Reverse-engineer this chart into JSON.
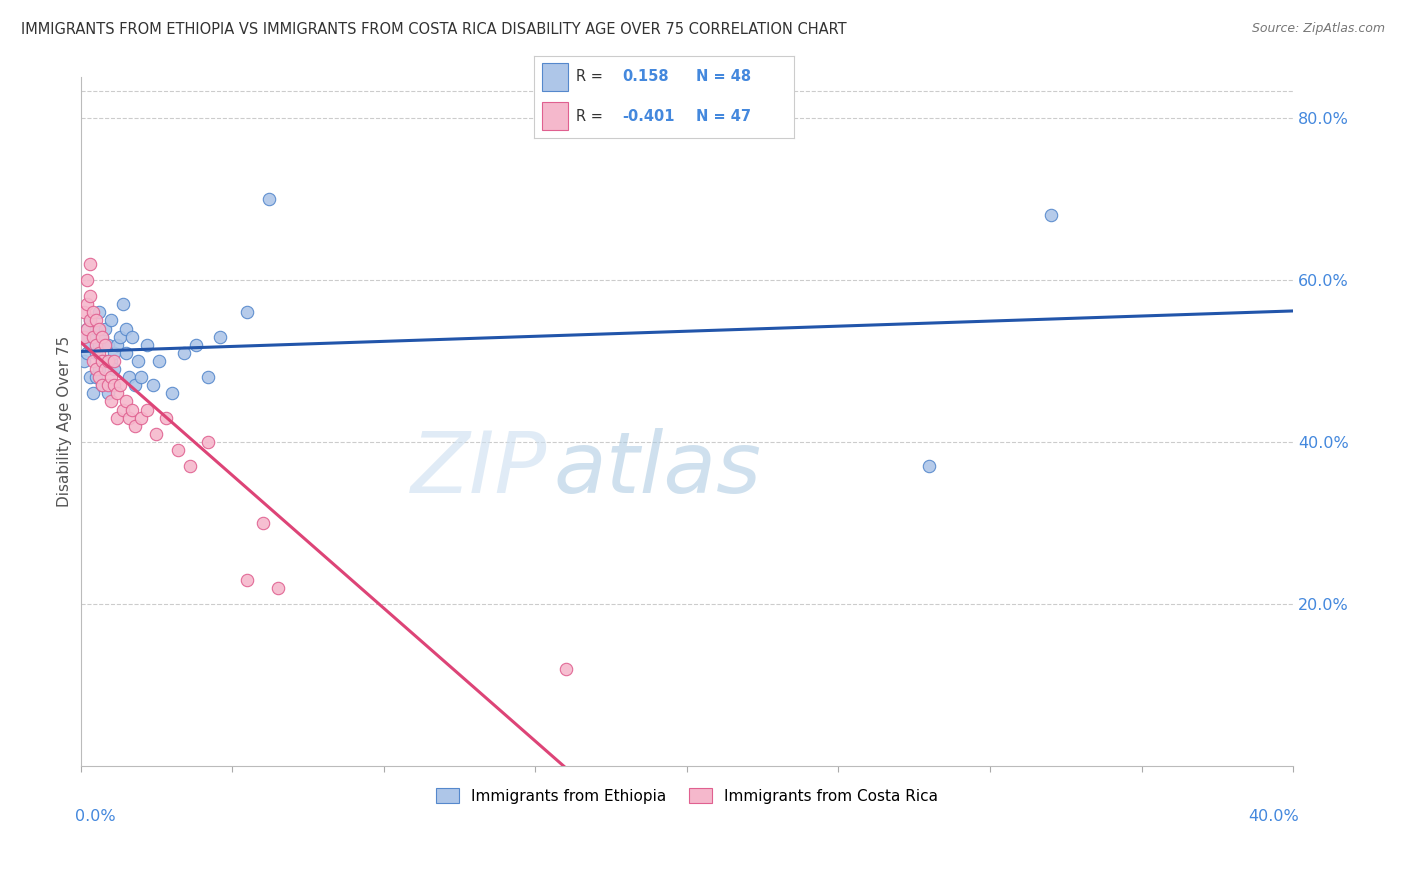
{
  "title": "IMMIGRANTS FROM ETHIOPIA VS IMMIGRANTS FROM COSTA RICA DISABILITY AGE OVER 75 CORRELATION CHART",
  "source": "Source: ZipAtlas.com",
  "ylabel": "Disability Age Over 75",
  "right_yticklabels": [
    "20.0%",
    "40.0%",
    "60.0%",
    "80.0%"
  ],
  "right_yticks": [
    0.2,
    0.4,
    0.6,
    0.8
  ],
  "ethiopia_fill": "#aec6e8",
  "ethiopia_edge": "#5588cc",
  "costarica_fill": "#f5b8cc",
  "costarica_edge": "#e06090",
  "eth_line_color": "#2255aa",
  "cr_line_color": "#dd4477",
  "R_ethiopia": 0.158,
  "N_ethiopia": 48,
  "R_costarica": -0.401,
  "N_costarica": 47,
  "xlim": [
    0.0,
    0.4
  ],
  "ylim": [
    0.0,
    0.85
  ],
  "ethiopia_scatter_x": [
    0.001,
    0.001,
    0.002,
    0.002,
    0.003,
    0.003,
    0.003,
    0.004,
    0.004,
    0.005,
    0.005,
    0.005,
    0.006,
    0.006,
    0.006,
    0.007,
    0.007,
    0.007,
    0.008,
    0.008,
    0.009,
    0.009,
    0.01,
    0.01,
    0.011,
    0.011,
    0.012,
    0.013,
    0.014,
    0.015,
    0.015,
    0.016,
    0.017,
    0.018,
    0.019,
    0.02,
    0.022,
    0.024,
    0.026,
    0.03,
    0.034,
    0.038,
    0.042,
    0.046,
    0.055,
    0.062,
    0.28,
    0.32
  ],
  "ethiopia_scatter_y": [
    0.5,
    0.53,
    0.51,
    0.54,
    0.48,
    0.52,
    0.55,
    0.46,
    0.53,
    0.48,
    0.51,
    0.54,
    0.49,
    0.52,
    0.56,
    0.47,
    0.5,
    0.53,
    0.5,
    0.54,
    0.46,
    0.52,
    0.5,
    0.55,
    0.51,
    0.49,
    0.52,
    0.53,
    0.57,
    0.51,
    0.54,
    0.48,
    0.53,
    0.47,
    0.5,
    0.48,
    0.52,
    0.47,
    0.5,
    0.46,
    0.51,
    0.52,
    0.48,
    0.53,
    0.56,
    0.7,
    0.37,
    0.68
  ],
  "costarica_scatter_x": [
    0.001,
    0.001,
    0.002,
    0.002,
    0.002,
    0.003,
    0.003,
    0.003,
    0.004,
    0.004,
    0.004,
    0.005,
    0.005,
    0.005,
    0.006,
    0.006,
    0.006,
    0.007,
    0.007,
    0.007,
    0.008,
    0.008,
    0.009,
    0.009,
    0.01,
    0.01,
    0.011,
    0.011,
    0.012,
    0.012,
    0.013,
    0.014,
    0.015,
    0.016,
    0.017,
    0.018,
    0.02,
    0.022,
    0.025,
    0.028,
    0.032,
    0.036,
    0.042,
    0.055,
    0.06,
    0.065,
    0.16
  ],
  "costarica_scatter_y": [
    0.56,
    0.53,
    0.6,
    0.57,
    0.54,
    0.62,
    0.58,
    0.55,
    0.56,
    0.53,
    0.5,
    0.55,
    0.52,
    0.49,
    0.54,
    0.51,
    0.48,
    0.53,
    0.5,
    0.47,
    0.52,
    0.49,
    0.5,
    0.47,
    0.48,
    0.45,
    0.5,
    0.47,
    0.46,
    0.43,
    0.47,
    0.44,
    0.45,
    0.43,
    0.44,
    0.42,
    0.43,
    0.44,
    0.41,
    0.43,
    0.39,
    0.37,
    0.4,
    0.23,
    0.3,
    0.22,
    0.12
  ],
  "background_color": "#ffffff",
  "grid_color": "#cccccc",
  "watermark_zip_color": "#c5dcf0",
  "watermark_atlas_color": "#a8c8e8"
}
